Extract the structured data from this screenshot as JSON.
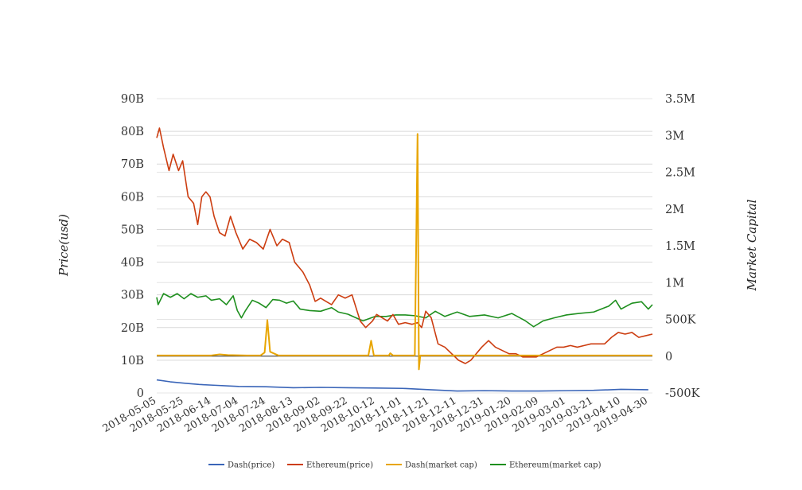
{
  "chart_data": {
    "type": "line",
    "title": "",
    "y_left_label": "Price(usd)",
    "y_right_label": "Market Capital",
    "y_left_ticks": [
      "0",
      "10B",
      "20B",
      "30B",
      "40B",
      "50B",
      "60B",
      "70B",
      "80B",
      "90B"
    ],
    "y_right_ticks": [
      "-500K",
      "0",
      "500K",
      "1M",
      "1.5M",
      "2M",
      "2.5M",
      "3M",
      "3.5M"
    ],
    "y_left_range": [
      0,
      90
    ],
    "y_right_range": [
      -500,
      3500
    ],
    "x_tick_labels": [
      "2018-05-05",
      "2018-05-25",
      "2018-06-14",
      "2018-07-04",
      "2018-07-24",
      "2018-08-13",
      "2018-09-02",
      "2018-09-22",
      "2018-10-12",
      "2018-11-01",
      "2018-11-21",
      "2018-12-11",
      "2018-12-31",
      "2019-01-20",
      "2019-02-09",
      "2019-03-01",
      "2019-03-21",
      "2019-04-10",
      "2019-04-30"
    ],
    "x_range": [
      "2018-05-05",
      "2019-05-03"
    ],
    "grid": true,
    "legend_position": "bottom",
    "series": [
      {
        "name": "Dash(price)",
        "axis": "left",
        "color": "#3a65b8",
        "points": [
          [
            "2018-05-05",
            4
          ],
          [
            "2018-05-15",
            3.4
          ],
          [
            "2018-05-25",
            3.0
          ],
          [
            "2018-06-05",
            2.6
          ],
          [
            "2018-06-14",
            2.4
          ],
          [
            "2018-07-04",
            2.0
          ],
          [
            "2018-07-24",
            1.9
          ],
          [
            "2018-08-13",
            1.6
          ],
          [
            "2018-09-02",
            1.7
          ],
          [
            "2018-09-22",
            1.6
          ],
          [
            "2018-10-12",
            1.5
          ],
          [
            "2018-11-01",
            1.4
          ],
          [
            "2018-11-21",
            1.0
          ],
          [
            "2018-12-11",
            0.6
          ],
          [
            "2018-12-31",
            0.7
          ],
          [
            "2019-01-20",
            0.6
          ],
          [
            "2019-02-09",
            0.6
          ],
          [
            "2019-03-01",
            0.7
          ],
          [
            "2019-03-21",
            0.8
          ],
          [
            "2019-04-10",
            1.1
          ],
          [
            "2019-04-30",
            1.0
          ]
        ]
      },
      {
        "name": "Ethereum(price)",
        "axis": "left",
        "color": "#cc3d10",
        "points": [
          [
            "2018-05-05",
            78
          ],
          [
            "2018-05-07",
            81
          ],
          [
            "2018-05-10",
            75
          ],
          [
            "2018-05-14",
            68
          ],
          [
            "2018-05-17",
            73
          ],
          [
            "2018-05-21",
            68
          ],
          [
            "2018-05-24",
            71
          ],
          [
            "2018-05-28",
            60
          ],
          [
            "2018-06-01",
            58
          ],
          [
            "2018-06-04",
            51.5
          ],
          [
            "2018-06-07",
            60
          ],
          [
            "2018-06-10",
            61.5
          ],
          [
            "2018-06-13",
            60
          ],
          [
            "2018-06-16",
            54
          ],
          [
            "2018-06-20",
            49
          ],
          [
            "2018-06-24",
            48
          ],
          [
            "2018-06-28",
            54
          ],
          [
            "2018-07-02",
            49
          ],
          [
            "2018-07-07",
            44
          ],
          [
            "2018-07-12",
            47
          ],
          [
            "2018-07-17",
            46
          ],
          [
            "2018-07-22",
            44
          ],
          [
            "2018-07-27",
            50
          ],
          [
            "2018-08-01",
            45
          ],
          [
            "2018-08-05",
            47
          ],
          [
            "2018-08-10",
            46
          ],
          [
            "2018-08-14",
            40
          ],
          [
            "2018-08-20",
            37
          ],
          [
            "2018-08-25",
            33
          ],
          [
            "2018-08-29",
            28
          ],
          [
            "2018-09-02",
            29
          ],
          [
            "2018-09-06",
            28
          ],
          [
            "2018-09-10",
            27
          ],
          [
            "2018-09-15",
            30
          ],
          [
            "2018-09-20",
            29
          ],
          [
            "2018-09-25",
            30
          ],
          [
            "2018-10-01",
            22
          ],
          [
            "2018-10-05",
            20
          ],
          [
            "2018-10-10",
            22
          ],
          [
            "2018-10-13",
            24
          ],
          [
            "2018-10-17",
            23
          ],
          [
            "2018-10-21",
            22
          ],
          [
            "2018-10-25",
            24
          ],
          [
            "2018-10-29",
            21
          ],
          [
            "2018-11-03",
            21.5
          ],
          [
            "2018-11-08",
            21
          ],
          [
            "2018-11-12",
            21.5
          ],
          [
            "2018-11-15",
            20
          ],
          [
            "2018-11-18",
            25
          ],
          [
            "2018-11-22",
            23
          ],
          [
            "2018-11-27",
            15
          ],
          [
            "2018-12-02",
            14
          ],
          [
            "2018-12-07",
            12
          ],
          [
            "2018-12-12",
            10
          ],
          [
            "2018-12-17",
            9
          ],
          [
            "2018-12-21",
            10
          ],
          [
            "2018-12-25",
            12
          ],
          [
            "2018-12-29",
            14
          ],
          [
            "2019-01-03",
            16
          ],
          [
            "2019-01-08",
            14
          ],
          [
            "2019-01-13",
            13
          ],
          [
            "2019-01-18",
            12
          ],
          [
            "2019-01-23",
            12
          ],
          [
            "2019-01-28",
            11
          ],
          [
            "2019-02-02",
            11
          ],
          [
            "2019-02-07",
            11
          ],
          [
            "2019-02-12",
            12
          ],
          [
            "2019-02-17",
            13
          ],
          [
            "2019-02-22",
            14
          ],
          [
            "2019-02-27",
            14
          ],
          [
            "2019-03-04",
            14.5
          ],
          [
            "2019-03-09",
            14
          ],
          [
            "2019-03-14",
            14.5
          ],
          [
            "2019-03-19",
            15
          ],
          [
            "2019-03-24",
            15
          ],
          [
            "2019-03-29",
            15
          ],
          [
            "2019-04-03",
            17
          ],
          [
            "2019-04-08",
            18.5
          ],
          [
            "2019-04-13",
            18
          ],
          [
            "2019-04-18",
            18.5
          ],
          [
            "2019-04-23",
            17
          ],
          [
            "2019-04-28",
            17.5
          ],
          [
            "2019-05-03",
            18
          ]
        ]
      },
      {
        "name": "Dash(market cap)",
        "axis": "right",
        "color": "#e8a500",
        "points": [
          [
            "2018-05-05",
            10
          ],
          [
            "2018-06-14",
            10
          ],
          [
            "2018-06-20",
            25
          ],
          [
            "2018-06-26",
            15
          ],
          [
            "2018-07-10",
            10
          ],
          [
            "2018-07-20",
            10
          ],
          [
            "2018-07-23",
            50
          ],
          [
            "2018-07-25",
            490
          ],
          [
            "2018-07-27",
            60
          ],
          [
            "2018-08-02",
            10
          ],
          [
            "2018-09-22",
            10
          ],
          [
            "2018-10-07",
            10
          ],
          [
            "2018-10-09",
            210
          ],
          [
            "2018-10-11",
            10
          ],
          [
            "2018-10-22",
            10
          ],
          [
            "2018-10-23",
            40
          ],
          [
            "2018-10-25",
            10
          ],
          [
            "2018-11-10",
            10
          ],
          [
            "2018-11-12",
            3020
          ],
          [
            "2018-11-13",
            -180
          ],
          [
            "2018-11-14",
            10
          ],
          [
            "2019-05-03",
            10
          ]
        ]
      },
      {
        "name": "Ethereum(market cap)",
        "axis": "right",
        "color": "#1e8f1e",
        "points": [
          [
            "2018-05-05",
            800
          ],
          [
            "2018-05-06",
            700
          ],
          [
            "2018-05-10",
            850
          ],
          [
            "2018-05-15",
            800
          ],
          [
            "2018-05-20",
            850
          ],
          [
            "2018-05-25",
            780
          ],
          [
            "2018-05-30",
            850
          ],
          [
            "2018-06-04",
            800
          ],
          [
            "2018-06-10",
            820
          ],
          [
            "2018-06-14",
            760
          ],
          [
            "2018-06-20",
            780
          ],
          [
            "2018-06-25",
            700
          ],
          [
            "2018-06-30",
            820
          ],
          [
            "2018-07-03",
            620
          ],
          [
            "2018-07-06",
            520
          ],
          [
            "2018-07-09",
            620
          ],
          [
            "2018-07-14",
            760
          ],
          [
            "2018-07-19",
            720
          ],
          [
            "2018-07-24",
            660
          ],
          [
            "2018-07-29",
            770
          ],
          [
            "2018-08-03",
            760
          ],
          [
            "2018-08-08",
            720
          ],
          [
            "2018-08-13",
            750
          ],
          [
            "2018-08-18",
            640
          ],
          [
            "2018-08-25",
            620
          ],
          [
            "2018-09-02",
            610
          ],
          [
            "2018-09-10",
            660
          ],
          [
            "2018-09-15",
            600
          ],
          [
            "2018-09-22",
            570
          ],
          [
            "2018-09-28",
            520
          ],
          [
            "2018-10-03",
            480
          ],
          [
            "2018-10-12",
            540
          ],
          [
            "2018-10-20",
            540
          ],
          [
            "2018-10-27",
            560
          ],
          [
            "2018-11-03",
            560
          ],
          [
            "2018-11-10",
            550
          ],
          [
            "2018-11-18",
            520
          ],
          [
            "2018-11-25",
            610
          ],
          [
            "2018-12-02",
            540
          ],
          [
            "2018-12-11",
            600
          ],
          [
            "2018-12-20",
            540
          ],
          [
            "2018-12-31",
            560
          ],
          [
            "2019-01-10",
            520
          ],
          [
            "2019-01-20",
            580
          ],
          [
            "2019-01-30",
            480
          ],
          [
            "2019-02-05",
            400
          ],
          [
            "2019-02-12",
            480
          ],
          [
            "2019-02-20",
            520
          ],
          [
            "2019-03-01",
            560
          ],
          [
            "2019-03-10",
            580
          ],
          [
            "2019-03-21",
            600
          ],
          [
            "2019-04-01",
            680
          ],
          [
            "2019-04-06",
            760
          ],
          [
            "2019-04-10",
            640
          ],
          [
            "2019-04-18",
            720
          ],
          [
            "2019-04-25",
            740
          ],
          [
            "2019-04-30",
            640
          ],
          [
            "2019-05-03",
            700
          ]
        ]
      }
    ]
  }
}
